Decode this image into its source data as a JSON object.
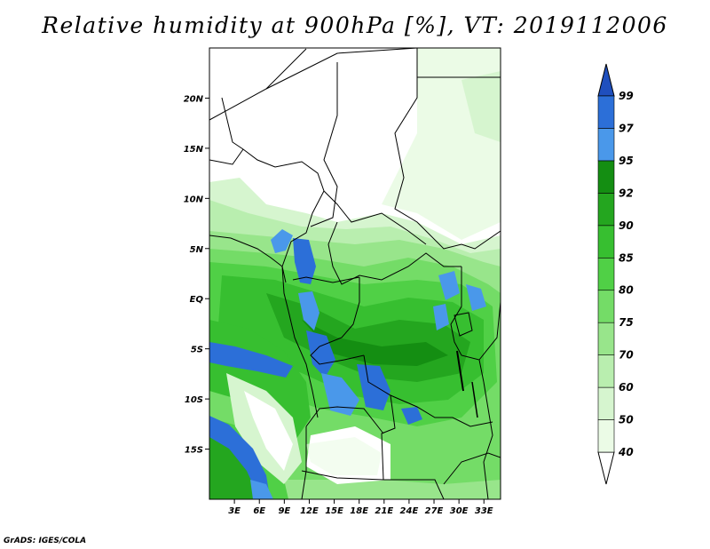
{
  "title": "Relative humidity at 900hPa [%], VT: 2019112006",
  "credit": "GrADS: IGES/COLA",
  "map": {
    "lon_range": [
      0,
      35
    ],
    "lat_range": [
      -20,
      25
    ],
    "lat_ticks": [
      {
        "value": 20,
        "label": "20N"
      },
      {
        "value": 15,
        "label": "15N"
      },
      {
        "value": 10,
        "label": "10N"
      },
      {
        "value": 5,
        "label": "5N"
      },
      {
        "value": 0,
        "label": "EQ"
      },
      {
        "value": -5,
        "label": "5S"
      },
      {
        "value": -10,
        "label": "10S"
      },
      {
        "value": -15,
        "label": "15S"
      }
    ],
    "lon_ticks": [
      {
        "value": 3,
        "label": "3E"
      },
      {
        "value": 6,
        "label": "6E"
      },
      {
        "value": 9,
        "label": "9E"
      },
      {
        "value": 12,
        "label": "12E"
      },
      {
        "value": 15,
        "label": "15E"
      },
      {
        "value": 18,
        "label": "18E"
      },
      {
        "value": 21,
        "label": "21E"
      },
      {
        "value": 24,
        "label": "24E"
      },
      {
        "value": 27,
        "label": "27E"
      },
      {
        "value": 30,
        "label": "30E"
      },
      {
        "value": 33,
        "label": "33E"
      }
    ]
  },
  "colorbar": {
    "levels": [
      {
        "label": "40",
        "color": "#ebfbe6"
      },
      {
        "label": "50",
        "color": "#d6f5cf"
      },
      {
        "label": "60",
        "color": "#b9eeaf"
      },
      {
        "label": "70",
        "color": "#98e58b"
      },
      {
        "label": "75",
        "color": "#74dc67"
      },
      {
        "label": "80",
        "color": "#50d046"
      },
      {
        "label": "85",
        "color": "#37bf30"
      },
      {
        "label": "90",
        "color": "#24a61f"
      },
      {
        "label": "92",
        "color": "#148e12"
      },
      {
        "label": "95",
        "color": "#4a98ea"
      },
      {
        "label": "97",
        "color": "#2c6fd8"
      },
      {
        "label": "99",
        "color": ""
      }
    ],
    "below_color": "#ffffff",
    "above_color": "#1f4fbe"
  }
}
